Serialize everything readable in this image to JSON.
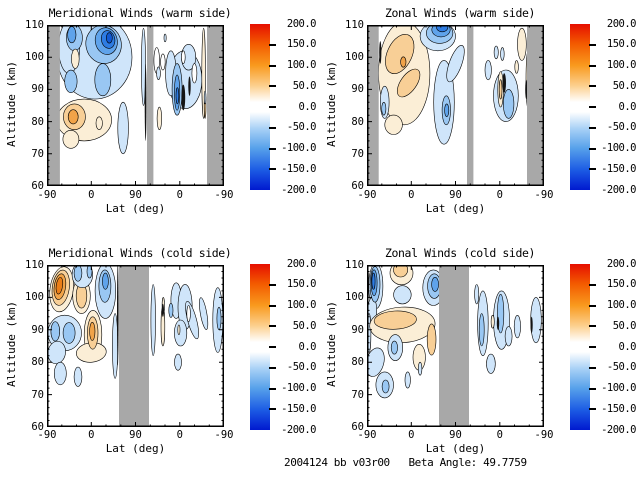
{
  "footer": "2004124 bb v03r00   Beta Angle: 49.7759",
  "band_color": "#a8a8a8",
  "palette": {
    "0": "#ffffff",
    "25": "#fbeed6",
    "50": "#f8cf96",
    "75": "#f1a348",
    "100": "#eb7e18",
    "-25": "#cfe5fa",
    "-50": "#99c7f3",
    "-75": "#5fa3eb",
    "-100": "#2e7ce2",
    "-125": "#1159d2",
    "ink": "#141414"
  },
  "axes": {
    "xlabel": "Lat (deg)",
    "ylabel": "Altitude (km)",
    "x_ticks": [
      "-90",
      "0",
      "90",
      "0",
      "-90"
    ],
    "y_ticks": [
      "110",
      "100",
      "90",
      "80",
      "70",
      "60"
    ],
    "y_range_km": [
      60,
      110
    ]
  },
  "colorbar": {
    "max": 200.0,
    "min": -200.0,
    "interval": 50.0,
    "tick_labels": [
      "200.0",
      "150.0",
      "100.0",
      "50.0",
      "0.0",
      "-50.0",
      "-100.0",
      "-150.0",
      "-200.0"
    ],
    "gradient": [
      [
        0,
        "#e60f00"
      ],
      [
        12,
        "#f35b00"
      ],
      [
        25,
        "#f99a1e"
      ],
      [
        37,
        "#fccf8c"
      ],
      [
        47,
        "#ffffff"
      ],
      [
        53,
        "#ffffff"
      ],
      [
        63,
        "#a9d1f6"
      ],
      [
        75,
        "#56a0ea"
      ],
      [
        88,
        "#1c5be4"
      ],
      [
        100,
        "#0019cf"
      ]
    ]
  },
  "chart_data": {
    "type": "filled_contour_grid",
    "x_axis": "Lat (deg), dual latitude sweep -90 to 90 then back to -90",
    "y_axis": "Altitude (km), 60 to 110",
    "value_range": [
      -200,
      200
    ],
    "feature_format": "[x_fraction_of_axis, altitude_km, x_halfwidth_fraction, alt_halfwidth_km, contour_level, rotation_deg?]",
    "panels": [
      {
        "id": "meridional-warm",
        "title": "Meridional Winds (warm side)",
        "xlabel": "Lat (deg)",
        "ylabel": "Altitude (km)",
        "missing_bands_u": [
          [
            0.0,
            0.073
          ],
          [
            0.565,
            0.601
          ],
          [
            0.904,
            1.0
          ]
        ],
        "features": [
          [
            0.27,
            100,
            0.21,
            13,
            "-25"
          ],
          [
            0.125,
            103,
            0.06,
            8,
            "-25"
          ],
          [
            0.43,
            78,
            0.03,
            8,
            "-25"
          ],
          [
            0.545,
            97,
            0.012,
            12,
            "-25"
          ],
          [
            0.32,
            104,
            0.1,
            6,
            "-50",
            -12
          ],
          [
            0.155,
            106,
            0.045,
            4,
            "-50"
          ],
          [
            0.135,
            92.5,
            0.035,
            3.5,
            "-50"
          ],
          [
            0.315,
            93,
            0.045,
            5,
            "-50"
          ],
          [
            0.335,
            105,
            0.062,
            4.2,
            "-75",
            -12
          ],
          [
            0.14,
            107,
            0.024,
            2.5,
            "-75"
          ],
          [
            0.345,
            105.5,
            0.038,
            2.8,
            "-100",
            -12
          ],
          [
            0.352,
            106,
            0.017,
            1.6,
            "-125"
          ],
          [
            0.16,
            99.5,
            0.022,
            3,
            "25"
          ],
          [
            0.21,
            80.5,
            0.155,
            6.5,
            "25"
          ],
          [
            0.135,
            74.5,
            0.045,
            2.8,
            "25"
          ],
          [
            0.295,
            79.5,
            0.018,
            2,
            "25"
          ],
          [
            0.155,
            81.5,
            0.062,
            4,
            "50"
          ],
          [
            0.148,
            81.5,
            0.028,
            2.2,
            "75"
          ],
          [
            0.557,
            86,
            0.005,
            12,
            "ink"
          ],
          [
            0.62,
            99,
            0.016,
            4,
            "0"
          ],
          [
            0.78,
            93,
            0.095,
            9,
            "-25"
          ],
          [
            0.7,
            95,
            0.03,
            7,
            "-25"
          ],
          [
            0.8,
            100,
            0.04,
            4,
            "-25"
          ],
          [
            0.735,
            90,
            0.028,
            8,
            "-50"
          ],
          [
            0.735,
            89,
            0.015,
            5.5,
            "-75"
          ],
          [
            0.737,
            88,
            0.008,
            2.5,
            "-100"
          ],
          [
            0.833,
            95,
            0.014,
            3,
            "0"
          ],
          [
            0.77,
            100,
            0.011,
            2,
            "0"
          ],
          [
            0.77,
            87.5,
            0.011,
            4,
            "ink"
          ],
          [
            0.805,
            91,
            0.007,
            3,
            "ink"
          ],
          [
            0.655,
            98.5,
            0.013,
            2.5,
            "0"
          ],
          [
            0.667,
            106,
            0.006,
            1.2,
            "-25"
          ],
          [
            0.63,
            95,
            0.011,
            2,
            "-25"
          ],
          [
            0.635,
            81,
            0.013,
            3.5,
            "25"
          ],
          [
            0.885,
            95,
            0.01,
            14,
            "25"
          ],
          [
            0.893,
            85,
            0.005,
            4,
            "50"
          ],
          [
            0.893,
            87.5,
            0.005,
            2,
            "-25"
          ]
        ]
      },
      {
        "id": "zonal-warm",
        "title": "Zonal Winds (warm side)",
        "xlabel": "Lat (deg)",
        "ylabel": "Altitude (km)",
        "missing_bands_u": [
          [
            0.0,
            0.066
          ],
          [
            0.565,
            0.601
          ],
          [
            0.904,
            1.0
          ]
        ],
        "features": [
          [
            0.21,
            95,
            0.145,
            16,
            "25"
          ],
          [
            0.15,
            79,
            0.05,
            3,
            "25"
          ],
          [
            0.185,
            101,
            0.07,
            6.5,
            "50",
            25
          ],
          [
            0.235,
            92,
            0.045,
            5,
            "50",
            35
          ],
          [
            0.205,
            98.5,
            0.015,
            1.6,
            "75"
          ],
          [
            0.4,
            106.5,
            0.1,
            4.5,
            "-25"
          ],
          [
            0.41,
            107.5,
            0.075,
            3.2,
            "-50"
          ],
          [
            0.418,
            108.5,
            0.052,
            2.2,
            "-75"
          ],
          [
            0.425,
            109.3,
            0.032,
            1.4,
            "-100"
          ],
          [
            0.435,
            86,
            0.058,
            13,
            "-25"
          ],
          [
            0.5,
            98,
            0.035,
            6,
            "-25",
            20
          ],
          [
            0.448,
            83.5,
            0.024,
            4.5,
            "-50"
          ],
          [
            0.45,
            83.5,
            0.012,
            2,
            "-75"
          ],
          [
            0.1,
            86,
            0.025,
            5,
            "-25"
          ],
          [
            0.095,
            84,
            0.012,
            2,
            "-50"
          ],
          [
            0.075,
            101.5,
            0.006,
            3.5,
            "ink"
          ],
          [
            0.785,
            88,
            0.07,
            8,
            "-25"
          ],
          [
            0.8,
            85.5,
            0.03,
            4.5,
            "-50"
          ],
          [
            0.755,
            90,
            0.016,
            5.5,
            "25"
          ],
          [
            0.755,
            90,
            0.008,
            3,
            "50"
          ],
          [
            0.775,
            92,
            0.01,
            3,
            "ink"
          ],
          [
            0.685,
            96,
            0.018,
            3,
            "-25"
          ],
          [
            0.73,
            101.5,
            0.012,
            2,
            "-25"
          ],
          [
            0.765,
            101,
            0.01,
            2,
            "-25"
          ],
          [
            0.875,
            104,
            0.025,
            5,
            "25"
          ],
          [
            0.91,
            93,
            0.012,
            9,
            "25"
          ],
          [
            0.845,
            97,
            0.01,
            2,
            "25"
          ],
          [
            0.945,
            90,
            0.008,
            6,
            "-25"
          ],
          [
            0.9,
            90,
            0.006,
            3,
            "ink"
          ]
        ]
      },
      {
        "id": "meridional-cold",
        "title": "Meridional Winds (cold side)",
        "xlabel": "Lat (deg)",
        "ylabel": "Altitude (km)",
        "missing_bands_u": [
          [
            0.407,
            0.576
          ]
        ],
        "features": [
          [
            0.083,
            102.5,
            0.066,
            7,
            "25",
            8
          ],
          [
            0.078,
            103,
            0.048,
            5.5,
            "50",
            8
          ],
          [
            0.073,
            103.3,
            0.032,
            4,
            "75",
            8
          ],
          [
            0.07,
            103.6,
            0.018,
            2.6,
            "100",
            8
          ],
          [
            0.195,
            100.5,
            0.05,
            5.5,
            "25"
          ],
          [
            0.195,
            100.5,
            0.03,
            3.8,
            "50"
          ],
          [
            0.26,
            88.5,
            0.05,
            7.5,
            "25"
          ],
          [
            0.25,
            83,
            0.085,
            3,
            "25",
            -6
          ],
          [
            0.258,
            89,
            0.03,
            5,
            "50"
          ],
          [
            0.256,
            89.5,
            0.015,
            2.8,
            "75"
          ],
          [
            0.2,
            107,
            0.058,
            4,
            "-25"
          ],
          [
            0.175,
            107.5,
            0.022,
            2.5,
            "-50"
          ],
          [
            0.24,
            108,
            0.014,
            2,
            "-50"
          ],
          [
            0.33,
            102,
            0.058,
            8.5,
            "-25"
          ],
          [
            0.327,
            103.5,
            0.034,
            5,
            "-50"
          ],
          [
            0.33,
            105,
            0.017,
            2.5,
            "-75"
          ],
          [
            0.385,
            85,
            0.015,
            10,
            "-25"
          ],
          [
            0.1,
            89,
            0.095,
            5.5,
            "-25"
          ],
          [
            0.047,
            89.5,
            0.025,
            3,
            "-50"
          ],
          [
            0.125,
            89,
            0.034,
            3.2,
            "-50"
          ],
          [
            0.055,
            83,
            0.05,
            3.5,
            "-25",
            10
          ],
          [
            0.075,
            76.5,
            0.034,
            3.5,
            "-25"
          ],
          [
            0.175,
            75.5,
            0.022,
            3,
            "-25"
          ],
          [
            0.4,
            95,
            0.0045,
            16,
            "ink"
          ],
          [
            0.004,
            103,
            0.0045,
            7,
            "ink"
          ],
          [
            0.6,
            93,
            0.013,
            11,
            "-25"
          ],
          [
            0.655,
            91,
            0.011,
            6,
            "25"
          ],
          [
            0.657,
            97.5,
            0.007,
            2.5,
            "25"
          ],
          [
            0.655,
            96,
            0.006,
            2,
            "ink"
          ],
          [
            0.73,
            99,
            0.03,
            5.5,
            "-25"
          ],
          [
            0.78,
            97,
            0.04,
            7,
            "-25"
          ],
          [
            0.82,
            93,
            0.025,
            6,
            "-25",
            -15
          ],
          [
            0.755,
            89,
            0.035,
            4,
            "-25"
          ],
          [
            0.8,
            95,
            0.01,
            2.5,
            "0"
          ],
          [
            0.745,
            90,
            0.006,
            1.5,
            "25"
          ],
          [
            0.885,
            95,
            0.018,
            5,
            "-25",
            -10
          ],
          [
            0.965,
            93,
            0.028,
            10,
            "-25"
          ],
          [
            0.972,
            93.5,
            0.012,
            3.5,
            "-50"
          ],
          [
            0.74,
            80,
            0.02,
            2.5,
            "-25"
          ],
          [
            0.7,
            96,
            0.012,
            2.2,
            "-50"
          ]
        ]
      },
      {
        "id": "zonal-cold",
        "title": "Zonal Winds (cold side)",
        "xlabel": "Lat (deg)",
        "ylabel": "Altitude (km)",
        "missing_bands_u": [
          [
            0.407,
            0.576
          ]
        ],
        "features": [
          [
            0.05,
            103.5,
            0.04,
            7,
            "-25"
          ],
          [
            0.03,
            96,
            0.025,
            4,
            "-25"
          ],
          [
            0.012,
            89,
            0.01,
            6,
            "-25"
          ],
          [
            0.045,
            104,
            0.028,
            5.5,
            "-50"
          ],
          [
            0.04,
            104.5,
            0.017,
            4,
            "-75"
          ],
          [
            0.037,
            105,
            0.009,
            2.5,
            "-100"
          ],
          [
            0.195,
            107.5,
            0.065,
            3.6,
            "25"
          ],
          [
            0.19,
            108.5,
            0.04,
            2.2,
            "50"
          ],
          [
            0.2,
            100.8,
            0.05,
            2.8,
            "-25"
          ],
          [
            0.375,
            103,
            0.06,
            5.5,
            "-25"
          ],
          [
            0.38,
            103.5,
            0.038,
            3.8,
            "-50"
          ],
          [
            0.385,
            104,
            0.02,
            2.2,
            "-75"
          ],
          [
            0.43,
            103,
            0.006,
            5,
            "ink"
          ],
          [
            0.2,
            91.5,
            0.185,
            5.5,
            "25",
            -3
          ],
          [
            0.295,
            81.5,
            0.035,
            4,
            "25"
          ],
          [
            0.16,
            93,
            0.12,
            2.8,
            "50",
            -3
          ],
          [
            0.365,
            87,
            0.025,
            4.8,
            "50"
          ],
          [
            0.16,
            84.5,
            0.042,
            4,
            "-25"
          ],
          [
            0.155,
            84.5,
            0.018,
            2,
            "-50"
          ],
          [
            0.045,
            80,
            0.05,
            4.5,
            "-25",
            15
          ],
          [
            0.1,
            73,
            0.05,
            4,
            "-25"
          ],
          [
            0.105,
            72.5,
            0.02,
            2,
            "-50"
          ],
          [
            0.23,
            74.5,
            0.015,
            2.5,
            "-25"
          ],
          [
            0.3,
            78,
            0.01,
            2,
            "-25"
          ],
          [
            0.005,
            104,
            0.006,
            5,
            "ink"
          ],
          [
            0.655,
            92,
            0.03,
            10,
            "-25"
          ],
          [
            0.62,
            101,
            0.012,
            3,
            "-25"
          ],
          [
            0.648,
            90,
            0.014,
            5,
            "-50"
          ],
          [
            0.76,
            93,
            0.045,
            9,
            "-25"
          ],
          [
            0.755,
            95,
            0.018,
            6,
            "-50"
          ],
          [
            0.8,
            88,
            0.02,
            3,
            "-25"
          ],
          [
            0.85,
            91,
            0.018,
            3.5,
            "-25"
          ],
          [
            0.7,
            79.5,
            0.025,
            3,
            "-25"
          ],
          [
            0.955,
            93,
            0.03,
            7,
            "-25"
          ],
          [
            0.71,
            92.5,
            0.009,
            2,
            "25"
          ],
          [
            0.74,
            92,
            0.007,
            2,
            "ink"
          ],
          [
            0.93,
            91.5,
            0.006,
            2.5,
            "ink"
          ]
        ]
      }
    ]
  }
}
